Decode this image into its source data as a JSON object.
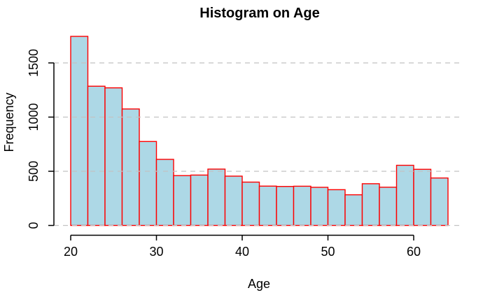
{
  "chart_data": {
    "type": "bar",
    "subtype": "histogram",
    "title": "Histogram on Age",
    "xlabel": "Age",
    "ylabel": "Frequency",
    "bin_width": 2,
    "bin_edges": [
      20,
      22,
      24,
      26,
      28,
      30,
      32,
      34,
      36,
      38,
      40,
      42,
      44,
      46,
      48,
      50,
      52,
      54,
      56,
      58,
      60,
      62,
      64
    ],
    "values": [
      1745,
      1285,
      1270,
      1075,
      775,
      610,
      460,
      465,
      520,
      455,
      400,
      363,
      360,
      362,
      352,
      330,
      283,
      385,
      353,
      555,
      518,
      438
    ],
    "x_ticks": [
      20,
      30,
      40,
      50,
      60
    ],
    "y_ticks": [
      0,
      500,
      1000,
      1500
    ],
    "xlim": [
      20,
      64
    ],
    "ylim": [
      0,
      1750
    ],
    "grid": "horizontal-dashed",
    "legend": "none",
    "colors": {
      "bar_fill": "#ADD8E6",
      "bar_border": "#FF0000",
      "gridline": "#C2C2C2",
      "axis": "#000000",
      "text": "#000000",
      "background": "#FFFFFF"
    }
  }
}
